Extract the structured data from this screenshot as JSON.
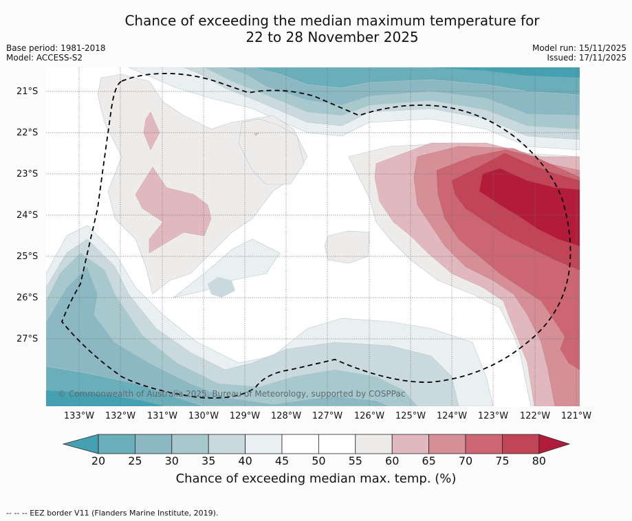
{
  "title": {
    "line1": "Chance of exceeding the median maximum temperature for",
    "line2": "22 to 28 November 2025"
  },
  "meta": {
    "base_period": "Base period: 1981-2018",
    "model": "Model: ACCESS-S2",
    "model_run": "Model run: 15/11/2025",
    "issued": "Issued: 17/11/2025"
  },
  "map": {
    "copyright": "© Commonwealth of Australia 2025, Bureau of Meteorology, supported by COSPPac",
    "lat_labels": [
      "21°S",
      "22°S",
      "23°S",
      "24°S",
      "25°S",
      "26°S",
      "27°S"
    ],
    "lon_labels": [
      "133°W",
      "132°W",
      "131°W",
      "130°W",
      "129°W",
      "128°W",
      "127°W",
      "126°W",
      "125°W",
      "124°W",
      "123°W",
      "122°W",
      "121°W"
    ],
    "extent": {
      "lon_min": -133.8,
      "lon_max": -120.9,
      "lat_min": -28.6,
      "lat_max": -20.4
    }
  },
  "colorbar": {
    "title": "Chance of exceeding median max. temp. (%)",
    "ticks": [
      "20",
      "25",
      "30",
      "35",
      "40",
      "45",
      "50",
      "55",
      "60",
      "65",
      "70",
      "75",
      "80"
    ],
    "colors": {
      "below20": "#45a0b2",
      "c20_25": "#6aaeba",
      "c25_30": "#8cb8c4",
      "c30_35": "#a7c8cd",
      "c35_40": "#c9d9dd",
      "c40_45": "#eaf0f2",
      "c45_50": "#ffffff",
      "c50_55": "#ffffff",
      "c55_60": "#eeeceb",
      "c60_65": "#e0b8be",
      "c65_70": "#d68e97",
      "c70_75": "#cc6672",
      "c75_80": "#c14556",
      "above80": "#b21c3a"
    }
  },
  "footer": {
    "eez_note": "--  --  -- EEZ border V11 (Flanders Marine Institute, 2019)."
  }
}
